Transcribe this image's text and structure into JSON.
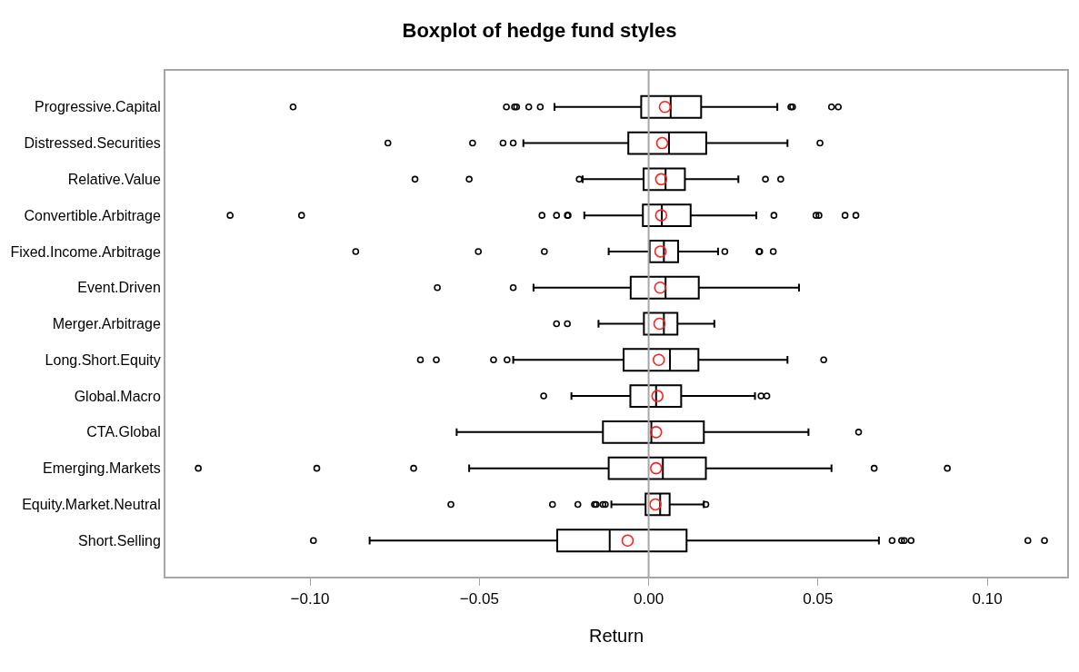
{
  "chart_data": {
    "type": "box",
    "orientation": "horizontal",
    "title": "Boxplot of hedge fund styles",
    "xlabel": "Return",
    "categories": [
      "Progressive.Capital",
      "Distressed.Securities",
      "Relative.Value",
      "Convertible.Arbitrage",
      "Fixed.Income.Arbitrage",
      "Event.Driven",
      "Merger.Arbitrage",
      "Long.Short.Equity",
      "Global.Macro",
      "CTA.Global",
      "Emerging.Markets",
      "Equity.Market.Neutral",
      "Short.Selling"
    ],
    "boxes": [
      {
        "low": -0.0278,
        "q1": -0.0022,
        "median": 0.0065,
        "q3": 0.0155,
        "high": 0.038,
        "mean": 0.0048,
        "outliers": [
          -0.105,
          -0.042,
          -0.0396,
          -0.039,
          -0.0354,
          -0.032,
          0.042,
          0.0425,
          0.054,
          0.056
        ]
      },
      {
        "low": -0.037,
        "q1": -0.006,
        "median": 0.006,
        "q3": 0.017,
        "high": 0.041,
        "mean": 0.004,
        "outliers": [
          -0.077,
          -0.052,
          -0.043,
          -0.04,
          0.0506
        ]
      },
      {
        "low": -0.0195,
        "q1": -0.0015,
        "median": 0.005,
        "q3": 0.0107,
        "high": 0.0265,
        "mean": 0.0037,
        "outliers": [
          -0.069,
          -0.053,
          -0.0205,
          0.0345,
          0.039
        ]
      },
      {
        "low": -0.019,
        "q1": -0.0017,
        "median": 0.0039,
        "q3": 0.0124,
        "high": 0.0318,
        "mean": 0.0037,
        "outliers": [
          -0.1236,
          -0.1025,
          -0.0315,
          -0.0272,
          -0.024,
          -0.0238,
          0.037,
          0.0494,
          0.0503,
          0.058,
          0.0612
        ]
      },
      {
        "low": -0.0118,
        "q1": 0.0003,
        "median": 0.0045,
        "q3": 0.0087,
        "high": 0.0205,
        "mean": 0.0035,
        "outliers": [
          -0.0865,
          -0.0503,
          -0.0308,
          0.0225,
          0.0326,
          0.0328,
          0.0368
        ]
      },
      {
        "low": -0.034,
        "q1": -0.0053,
        "median": 0.005,
        "q3": 0.0148,
        "high": 0.0444,
        "mean": 0.0034,
        "outliers": [
          -0.0624,
          -0.04
        ]
      },
      {
        "low": -0.0148,
        "q1": -0.0014,
        "median": 0.0045,
        "q3": 0.0085,
        "high": 0.0194,
        "mean": 0.0032,
        "outliers": [
          -0.0272,
          -0.024
        ]
      },
      {
        "low": -0.04,
        "q1": -0.0074,
        "median": 0.0063,
        "q3": 0.0147,
        "high": 0.041,
        "mean": 0.003,
        "outliers": [
          -0.0674,
          -0.0627,
          -0.0458,
          -0.0418,
          0.0517
        ]
      },
      {
        "low": -0.0228,
        "q1": -0.0054,
        "median": 0.0022,
        "q3": 0.0096,
        "high": 0.0314,
        "mean": 0.0026,
        "outliers": [
          -0.031,
          0.0332,
          0.0349
        ]
      },
      {
        "low": -0.0567,
        "q1": -0.0135,
        "median": 0.0008,
        "q3": 0.0163,
        "high": 0.0472,
        "mean": 0.0022,
        "outliers": [
          0.062
        ]
      },
      {
        "low": -0.053,
        "q1": -0.0118,
        "median": 0.0042,
        "q3": 0.0169,
        "high": 0.054,
        "mean": 0.0022,
        "outliers": [
          -0.133,
          -0.098,
          -0.0694,
          0.0666,
          0.0882
        ]
      },
      {
        "low": -0.011,
        "q1": -0.0009,
        "median": 0.0034,
        "q3": 0.0062,
        "high": 0.0163,
        "mean": 0.002,
        "outliers": [
          -0.0584,
          -0.0284,
          -0.0209,
          -0.016,
          -0.0155,
          -0.0135,
          -0.0128,
          0.0169
        ]
      },
      {
        "low": -0.0824,
        "q1": -0.027,
        "median": -0.0115,
        "q3": 0.0112,
        "high": 0.068,
        "mean": -0.0062,
        "outliers": [
          -0.099,
          0.0719,
          0.0747,
          0.0755,
          0.0775,
          0.112,
          0.1169
        ]
      }
    ],
    "xlim": [
      -0.1427,
      0.1236
    ],
    "xticks": [
      {
        "value": -0.1,
        "label": "−0.10"
      },
      {
        "value": -0.05,
        "label": "−0.05"
      },
      {
        "value": 0,
        "label": "0.00"
      },
      {
        "value": 0.05,
        "label": "0.05"
      },
      {
        "value": 0.1,
        "label": "0.10"
      }
    ],
    "ref_lines": [
      {
        "axis": "x",
        "value": 0,
        "color": "#a6a6a6"
      }
    ]
  }
}
